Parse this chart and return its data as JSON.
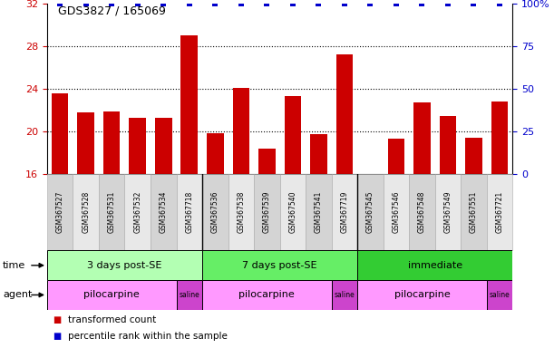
{
  "title": "GDS3827 / 165069",
  "samples": [
    "GSM367527",
    "GSM367528",
    "GSM367531",
    "GSM367532",
    "GSM367534",
    "GSM367718",
    "GSM367536",
    "GSM367538",
    "GSM367539",
    "GSM367540",
    "GSM367541",
    "GSM367719",
    "GSM367545",
    "GSM367546",
    "GSM367548",
    "GSM367549",
    "GSM367551",
    "GSM367721"
  ],
  "bar_values": [
    23.6,
    21.8,
    21.9,
    21.3,
    21.3,
    29.0,
    19.8,
    24.1,
    18.4,
    23.3,
    19.7,
    27.2,
    16.0,
    19.3,
    22.7,
    21.4,
    19.4,
    22.8
  ],
  "percentile_values": [
    100,
    100,
    100,
    100,
    100,
    100,
    100,
    100,
    100,
    100,
    100,
    100,
    100,
    100,
    100,
    100,
    100,
    100
  ],
  "bar_color": "#cc0000",
  "percentile_color": "#0000cc",
  "ylim_left": [
    16,
    32
  ],
  "ylim_right": [
    0,
    100
  ],
  "yticks_left": [
    16,
    20,
    24,
    28,
    32
  ],
  "yticks_right": [
    0,
    25,
    50,
    75,
    100
  ],
  "ytick_labels_right": [
    "0",
    "25",
    "50",
    "75",
    "100%"
  ],
  "time_groups": [
    {
      "label": "3 days post-SE",
      "start": 0,
      "end": 6,
      "color": "#b3ffb3"
    },
    {
      "label": "7 days post-SE",
      "start": 6,
      "end": 12,
      "color": "#66ee66"
    },
    {
      "label": "immediate",
      "start": 12,
      "end": 18,
      "color": "#33cc33"
    }
  ],
  "agent_groups": [
    {
      "label": "pilocarpine",
      "start": 0,
      "end": 5,
      "color": "#ff99ff"
    },
    {
      "label": "saline",
      "start": 5,
      "end": 6,
      "color": "#cc44cc"
    },
    {
      "label": "pilocarpine",
      "start": 6,
      "end": 11,
      "color": "#ff99ff"
    },
    {
      "label": "saline",
      "start": 11,
      "end": 12,
      "color": "#cc44cc"
    },
    {
      "label": "pilocarpine",
      "start": 12,
      "end": 17,
      "color": "#ff99ff"
    },
    {
      "label": "saline",
      "start": 17,
      "end": 18,
      "color": "#cc44cc"
    }
  ],
  "legend_items": [
    {
      "label": "transformed count",
      "color": "#cc0000"
    },
    {
      "label": "percentile rank within the sample",
      "color": "#0000cc"
    }
  ],
  "bg_color": "#ffffff",
  "tick_label_color_left": "#cc0000",
  "tick_label_color_right": "#0000cc",
  "sample_box_color_odd": "#d4d4d4",
  "sample_box_color_even": "#e8e8e8"
}
